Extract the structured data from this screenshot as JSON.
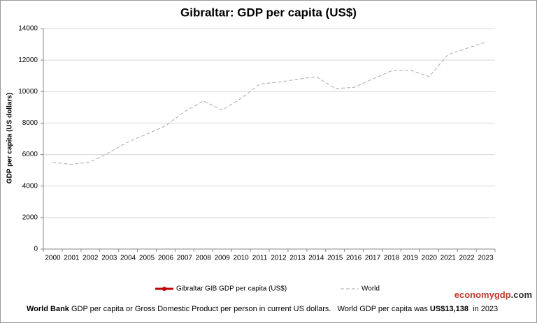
{
  "chart_data": {
    "type": "line",
    "title": "Gibraltar: GDP per capita (US$)",
    "y_label": "GDP per capita (US dollars)",
    "categories": [
      "2000",
      "2001",
      "2002",
      "2003",
      "2004",
      "2005",
      "2006",
      "2007",
      "2008",
      "2009",
      "2010",
      "2011",
      "2012",
      "2013",
      "2014",
      "2015",
      "2016",
      "2017",
      "2018",
      "2019",
      "2020",
      "2021",
      "2022",
      "2023"
    ],
    "series": [
      {
        "name": "Gibraltar GIB GDP per capita (US$)",
        "color": "#c00000",
        "style": "solid",
        "values": [
          null,
          null,
          null,
          null,
          null,
          null,
          null,
          null,
          null,
          null,
          null,
          null,
          null,
          null,
          null,
          null,
          null,
          null,
          null,
          null,
          null,
          null,
          null,
          null
        ]
      },
      {
        "name": "World",
        "color": "#aaaaaa",
        "style": "dashed",
        "values": [
          5500,
          5380,
          5530,
          6130,
          6800,
          7300,
          7830,
          8730,
          9400,
          8830,
          9560,
          10480,
          10600,
          10780,
          10950,
          10200,
          10260,
          10800,
          11320,
          11360,
          10950,
          12350,
          12750,
          13138
        ]
      }
    ],
    "ylim": [
      0,
      14000
    ],
    "yticks": [
      0,
      2000,
      4000,
      6000,
      8000,
      10000,
      12000,
      14000
    ],
    "grid": true,
    "legend": "bottom",
    "footer": [
      "World Bank",
      " GDP per capita or Gross Domestic Product per person in current US dollars.   World GDP per capita was ",
      "US$13,138",
      "  in 2023"
    ],
    "brand": [
      "economy",
      "gdp",
      ".com"
    ]
  }
}
